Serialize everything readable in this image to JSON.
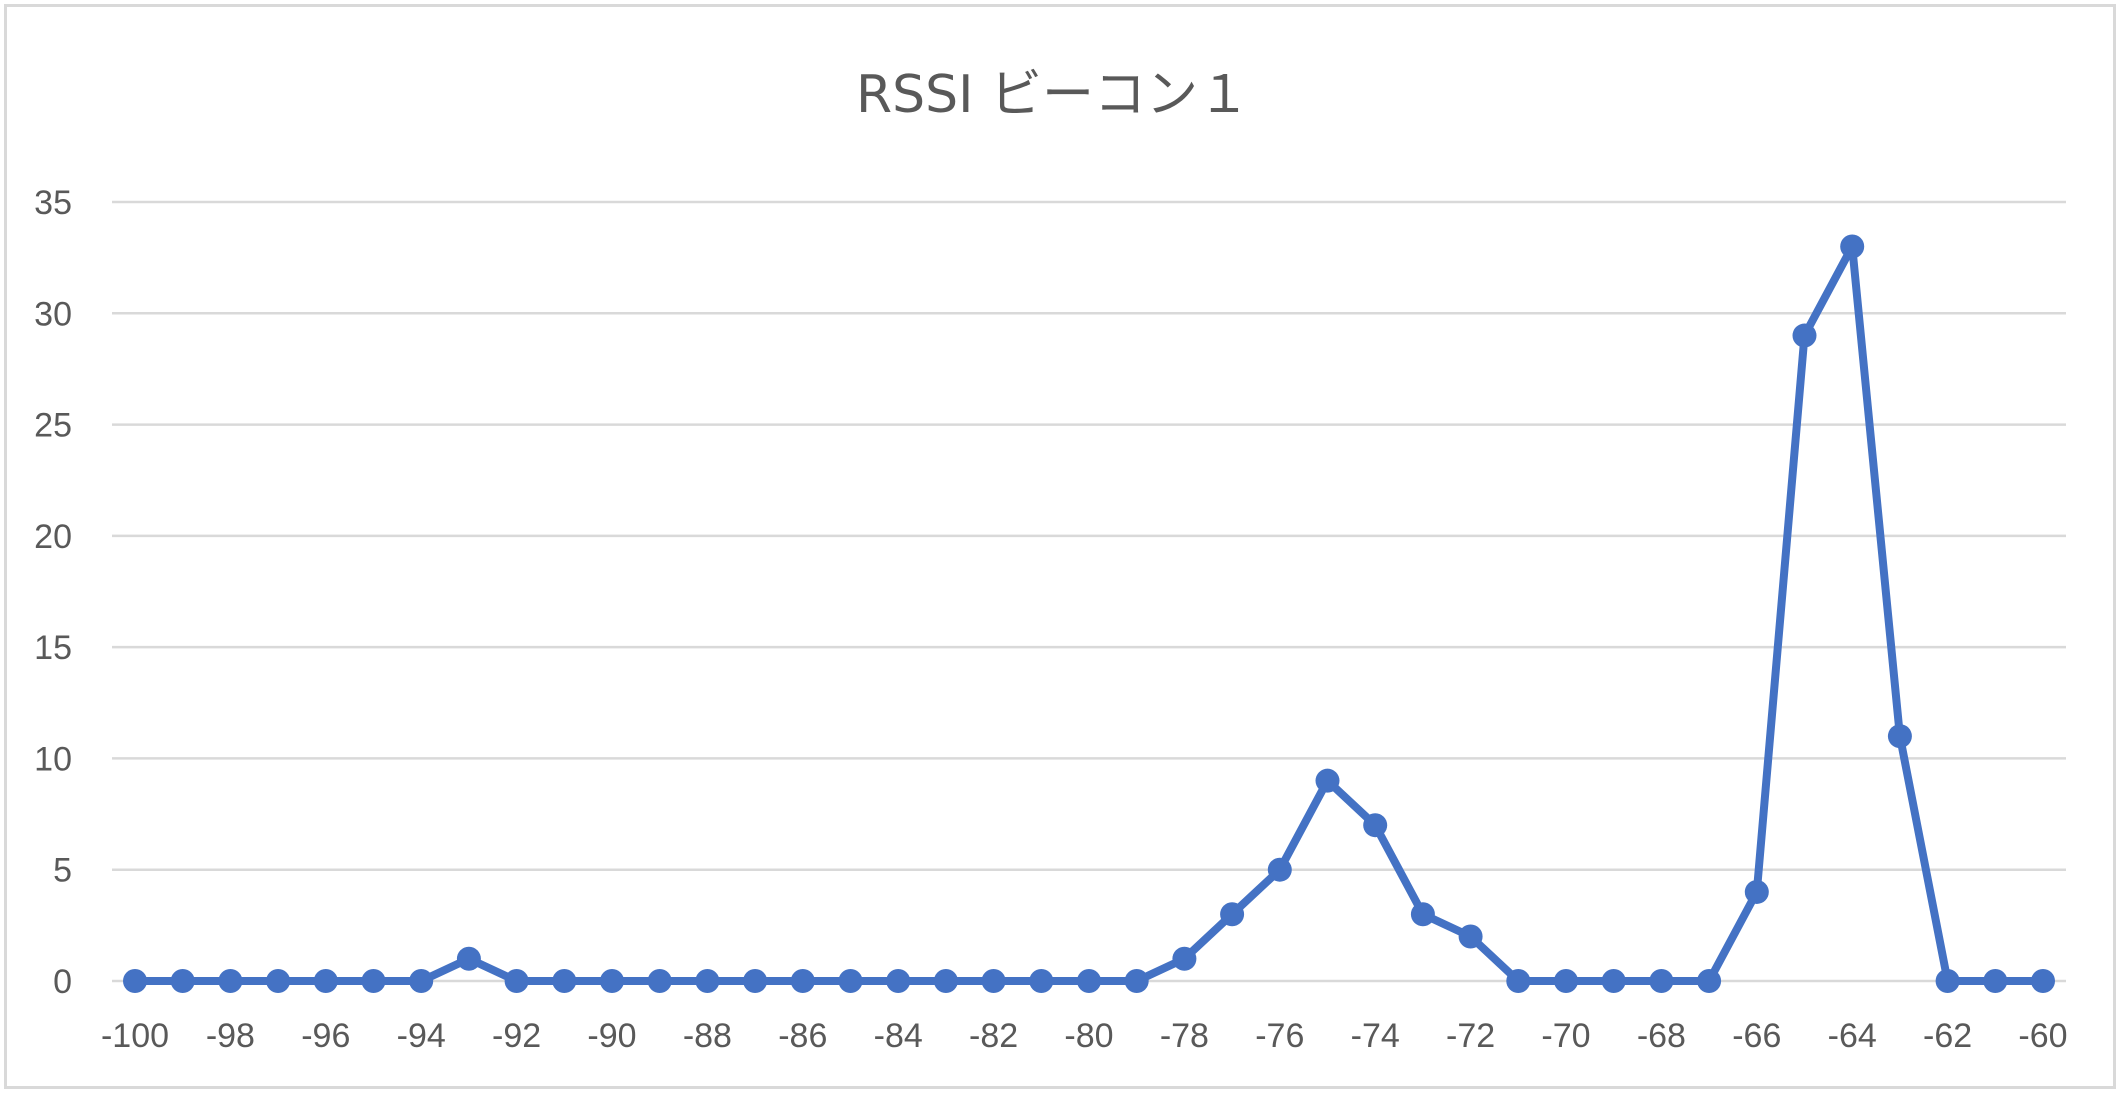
{
  "chart_data": {
    "type": "line",
    "title": "RSSI ビーコン１",
    "xlabel": "",
    "ylabel": "",
    "x": [
      -100,
      -99,
      -98,
      -97,
      -96,
      -95,
      -94,
      -93,
      -92,
      -91,
      -90,
      -89,
      -88,
      -87,
      -86,
      -85,
      -84,
      -83,
      -82,
      -81,
      -80,
      -79,
      -78,
      -77,
      -76,
      -75,
      -74,
      -73,
      -72,
      -71,
      -70,
      -69,
      -68,
      -67,
      -66,
      -65,
      -64,
      -63,
      -62,
      -61,
      -60
    ],
    "x_tick_labels": [
      "-100",
      "-98",
      "-96",
      "-94",
      "-92",
      "-90",
      "-88",
      "-86",
      "-84",
      "-82",
      "-80",
      "-78",
      "-76",
      "-74",
      "-72",
      "-70",
      "-68",
      "-66",
      "-64",
      "-62",
      "-60"
    ],
    "y_tick_labels": [
      "0",
      "5",
      "10",
      "15",
      "20",
      "25",
      "30",
      "35"
    ],
    "ylim": [
      0,
      35
    ],
    "grid": true,
    "legend": "none",
    "series": [
      {
        "values": [
          0,
          0,
          0,
          0,
          0,
          0,
          0,
          1,
          0,
          0,
          0,
          0,
          0,
          0,
          0,
          0,
          0,
          0,
          0,
          0,
          0,
          0,
          1,
          3,
          5,
          9,
          7,
          3,
          2,
          0,
          0,
          0,
          0,
          0,
          4,
          29,
          33,
          11,
          0,
          0,
          0
        ],
        "color": "#4472c4",
        "marker": "circle"
      }
    ]
  }
}
